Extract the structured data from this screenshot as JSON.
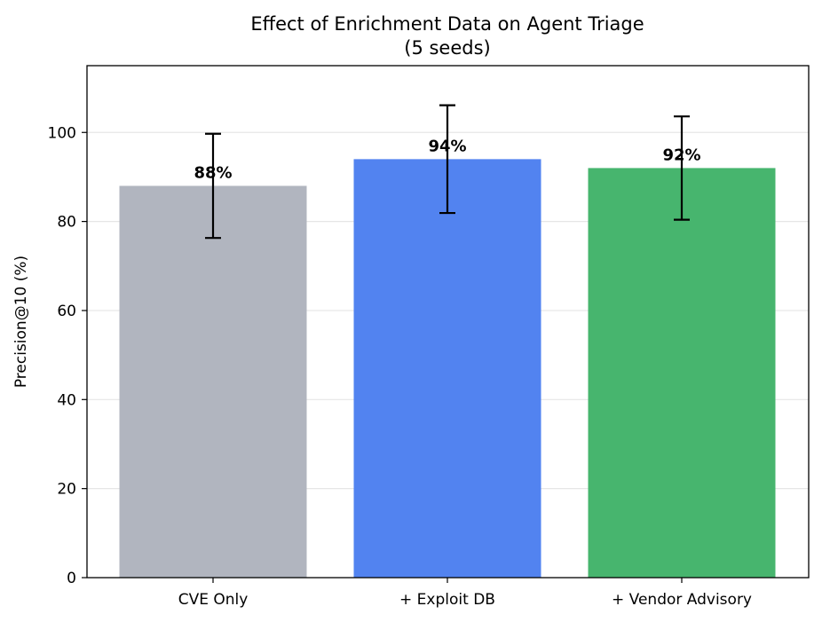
{
  "chart_data": {
    "type": "bar",
    "title": "Effect of Enrichment Data on Agent Triage",
    "subtitle": "(5 seeds)",
    "xlabel": "",
    "ylabel": "Precision@10 (%)",
    "ylim": [
      0,
      115
    ],
    "yticks": [
      0,
      20,
      40,
      60,
      80,
      100
    ],
    "grid": "y",
    "categories": [
      "CVE Only",
      "+ Exploit DB",
      "+ Vendor Advisory"
    ],
    "values": [
      88,
      94,
      92
    ],
    "errors": [
      11.7,
      12.1,
      11.6
    ],
    "data_labels": [
      "88%",
      "94%",
      "92%"
    ],
    "colors": [
      "#b1b5bf",
      "#5283f0",
      "#47b56e"
    ]
  }
}
